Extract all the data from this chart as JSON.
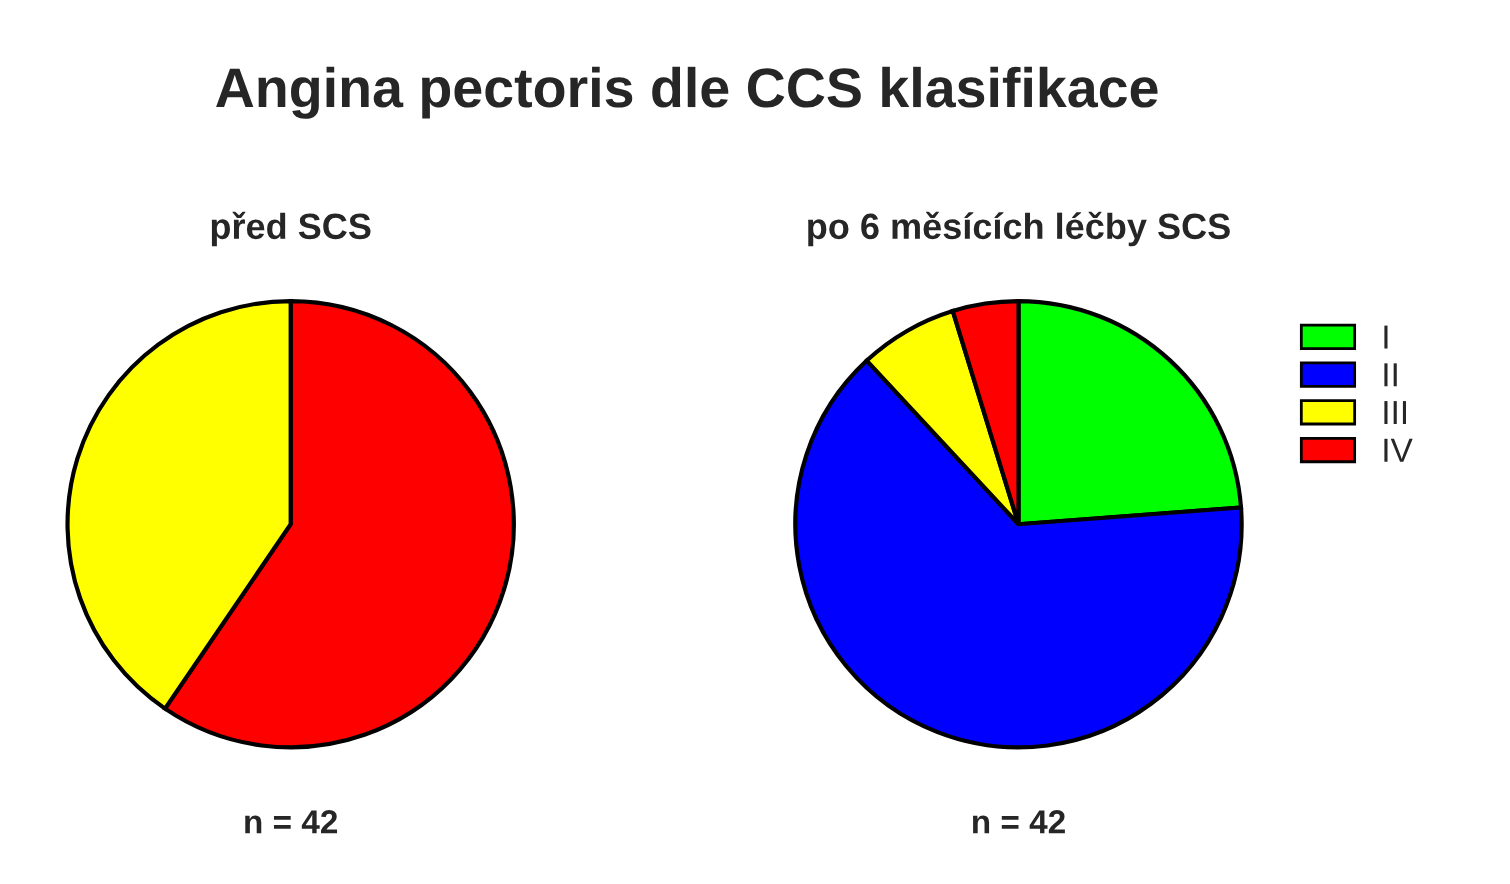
{
  "chart_data": [
    {
      "type": "pie",
      "title": "Angina pectoris dle CCS klasifikace",
      "subtitle": "před SCS",
      "categories": [
        null,
        null
      ],
      "values": [
        59.52,
        40.48
      ],
      "colors": [
        "#ff0000",
        "#ffff00"
      ],
      "annotations": [
        "n = 42"
      ],
      "legend": false
    },
    {
      "type": "pie",
      "subtitle": "po 6 měsících léčby SCS",
      "categories": [
        "I",
        "II",
        "III",
        "IV"
      ],
      "values": [
        23.81,
        64.29,
        7.14,
        4.76
      ],
      "colors": [
        "#00ff00",
        "#0000ff",
        "#ffff00",
        "#ff0000"
      ],
      "annotations": [
        "n = 42"
      ],
      "legend": "right"
    }
  ]
}
